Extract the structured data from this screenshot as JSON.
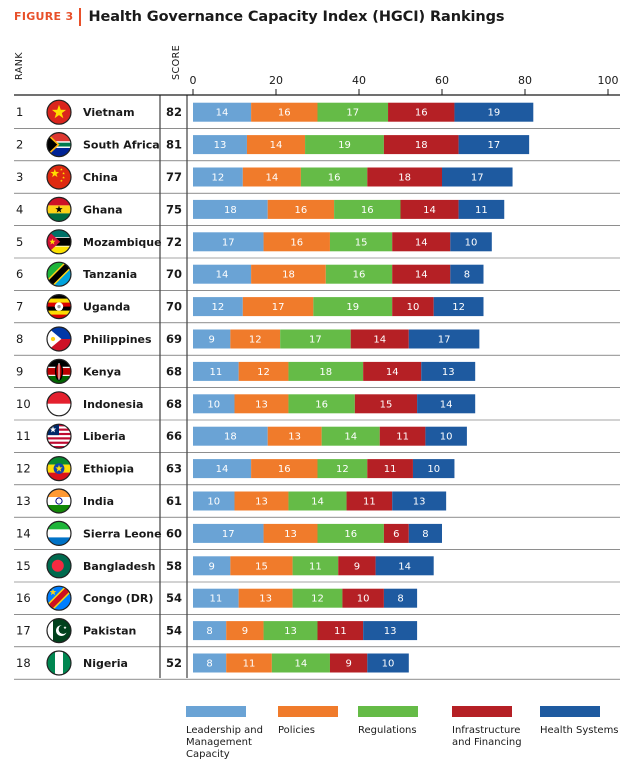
{
  "header": {
    "figure_label": "FIGURE 3",
    "title": "Health Governance Capacity Index (HGCI) Rankings"
  },
  "columns": {
    "rank": "RANK",
    "score": "SCORE"
  },
  "colors": {
    "leadership": "#6aa3d5",
    "policies": "#f07b2b",
    "regulations": "#65bb47",
    "infrastructure": "#b52025",
    "health_systems": "#1e5aa0"
  },
  "chart_data": {
    "type": "bar",
    "stacked": true,
    "orientation": "horizontal",
    "xlim": [
      0,
      100
    ],
    "xticks": [
      0,
      20,
      40,
      60,
      80,
      100
    ],
    "series": [
      {
        "name": "Leadership and Management Capacity",
        "values": [
          14,
          13,
          12,
          18,
          17,
          14,
          12,
          9,
          11,
          10,
          18,
          14,
          10,
          17,
          9,
          11,
          8,
          8
        ]
      },
      {
        "name": "Policies",
        "values": [
          16,
          14,
          14,
          16,
          16,
          18,
          17,
          12,
          12,
          13,
          13,
          16,
          13,
          13,
          15,
          13,
          9,
          11
        ]
      },
      {
        "name": "Regulations",
        "values": [
          17,
          19,
          16,
          16,
          15,
          16,
          19,
          17,
          18,
          16,
          14,
          12,
          14,
          16,
          11,
          12,
          13,
          14
        ]
      },
      {
        "name": "Infrastructure and Financing",
        "values": [
          16,
          18,
          18,
          14,
          14,
          14,
          10,
          14,
          14,
          15,
          11,
          11,
          11,
          6,
          9,
          10,
          11,
          9
        ]
      },
      {
        "name": "Health Systems",
        "values": [
          19,
          17,
          17,
          11,
          10,
          8,
          12,
          17,
          13,
          14,
          10,
          10,
          13,
          8,
          14,
          8,
          13,
          10
        ]
      }
    ],
    "rows": [
      {
        "rank": "1",
        "country": "Vietnam",
        "score": "82",
        "flag": "vietnam-flag-icon"
      },
      {
        "rank": "2",
        "country": "South Africa",
        "score": "81",
        "flag": "south-africa-flag-icon"
      },
      {
        "rank": "3",
        "country": "China",
        "score": "77",
        "flag": "china-flag-icon"
      },
      {
        "rank": "4",
        "country": "Ghana",
        "score": "75",
        "flag": "ghana-flag-icon"
      },
      {
        "rank": "5",
        "country": "Mozambique",
        "score": "72",
        "flag": "mozambique-flag-icon"
      },
      {
        "rank": "6",
        "country": "Tanzania",
        "score": "70",
        "flag": "tanzania-flag-icon"
      },
      {
        "rank": "7",
        "country": "Uganda",
        "score": "70",
        "flag": "uganda-flag-icon"
      },
      {
        "rank": "8",
        "country": "Philippines",
        "score": "69",
        "flag": "philippines-flag-icon"
      },
      {
        "rank": "9",
        "country": "Kenya",
        "score": "68",
        "flag": "kenya-flag-icon"
      },
      {
        "rank": "10",
        "country": "Indonesia",
        "score": "68",
        "flag": "indonesia-flag-icon"
      },
      {
        "rank": "11",
        "country": "Liberia",
        "score": "66",
        "flag": "liberia-flag-icon"
      },
      {
        "rank": "12",
        "country": "Ethiopia",
        "score": "63",
        "flag": "ethiopia-flag-icon"
      },
      {
        "rank": "13",
        "country": "India",
        "score": "61",
        "flag": "india-flag-icon"
      },
      {
        "rank": "14",
        "country": "Sierra Leone",
        "score": "60",
        "flag": "sierra-leone-flag-icon"
      },
      {
        "rank": "15",
        "country": "Bangladesh",
        "score": "58",
        "flag": "bangladesh-flag-icon"
      },
      {
        "rank": "16",
        "country": "Congo (DR)",
        "score": "54",
        "flag": "congo-dr-flag-icon"
      },
      {
        "rank": "17",
        "country": "Pakistan",
        "score": "54",
        "flag": "pakistan-flag-icon"
      },
      {
        "rank": "18",
        "country": "Nigeria",
        "score": "52",
        "flag": "nigeria-flag-icon"
      }
    ]
  },
  "legend": {
    "items": [
      {
        "label": "Leadership and Management Capacity",
        "color": "#6aa3d5"
      },
      {
        "label": "Policies",
        "color": "#f07b2b"
      },
      {
        "label": "Regulations",
        "color": "#65bb47"
      },
      {
        "label": "Infrastructure and Financing",
        "color": "#b52025"
      },
      {
        "label": "Health Systems",
        "color": "#1e5aa0"
      }
    ]
  }
}
